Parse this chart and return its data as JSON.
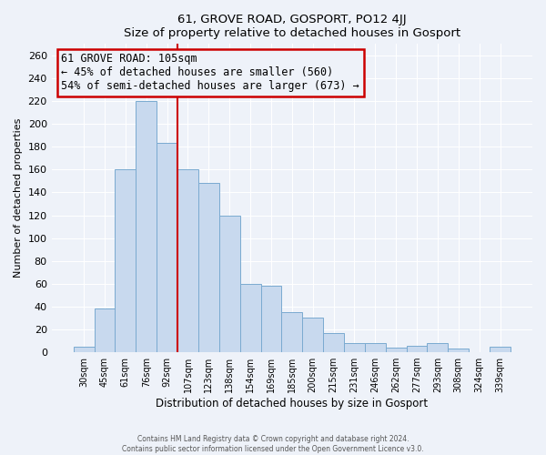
{
  "title": "61, GROVE ROAD, GOSPORT, PO12 4JJ",
  "subtitle": "Size of property relative to detached houses in Gosport",
  "xlabel": "Distribution of detached houses by size in Gosport",
  "ylabel": "Number of detached properties",
  "bar_labels": [
    "30sqm",
    "45sqm",
    "61sqm",
    "76sqm",
    "92sqm",
    "107sqm",
    "123sqm",
    "138sqm",
    "154sqm",
    "169sqm",
    "185sqm",
    "200sqm",
    "215sqm",
    "231sqm",
    "246sqm",
    "262sqm",
    "277sqm",
    "293sqm",
    "308sqm",
    "324sqm",
    "339sqm"
  ],
  "bar_values": [
    5,
    38,
    160,
    220,
    183,
    160,
    148,
    120,
    60,
    58,
    35,
    30,
    17,
    8,
    8,
    4,
    6,
    8,
    3,
    0,
    5
  ],
  "bar_color": "#c8d9ee",
  "bar_edge_color": "#7aaad0",
  "vline_x_index": 5,
  "vline_color": "#cc0000",
  "annotation_title": "61 GROVE ROAD: 105sqm",
  "annotation_line1": "← 45% of detached houses are smaller (560)",
  "annotation_line2": "54% of semi-detached houses are larger (673) →",
  "annotation_box_edge": "#cc0000",
  "ylim": [
    0,
    270
  ],
  "yticks": [
    0,
    20,
    40,
    60,
    80,
    100,
    120,
    140,
    160,
    180,
    200,
    220,
    240,
    260
  ],
  "footer_line1": "Contains HM Land Registry data © Crown copyright and database right 2024.",
  "footer_line2": "Contains public sector information licensed under the Open Government Licence v3.0.",
  "background_color": "#eef2f9",
  "grid_color": "#ffffff"
}
